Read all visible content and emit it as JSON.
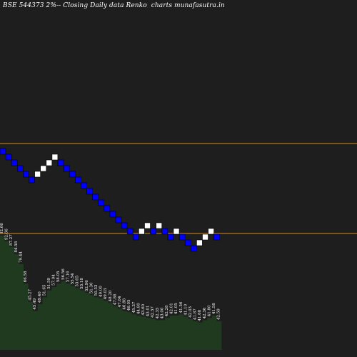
{
  "chart_data": {
    "type": "renko",
    "title": "BSE 544373 2%-- Closing Daily data Renko  charts munafasutra.in",
    "grid": false,
    "colors": {
      "background": "#1e1e1e",
      "up_brick": "#ffffff",
      "down_brick": "#0000ff",
      "reference_line": "#d98a1c",
      "volume_area": "#1f3a1f"
    },
    "reference_lines": [
      "upper",
      "lower"
    ],
    "bricks": [
      {
        "n": 0,
        "level": 0,
        "dir": "down"
      },
      {
        "n": 1,
        "level": 1,
        "dir": "down"
      },
      {
        "n": 2,
        "level": 2,
        "dir": "down"
      },
      {
        "n": 3,
        "level": 3,
        "dir": "down"
      },
      {
        "n": 4,
        "level": 4,
        "dir": "down"
      },
      {
        "n": 5,
        "level": 5,
        "dir": "down"
      },
      {
        "n": 6,
        "level": 4,
        "dir": "up"
      },
      {
        "n": 7,
        "level": 3,
        "dir": "up"
      },
      {
        "n": 8,
        "level": 2,
        "dir": "up"
      },
      {
        "n": 9,
        "level": 1,
        "dir": "up"
      },
      {
        "n": 10,
        "level": 2,
        "dir": "down"
      },
      {
        "n": 11,
        "level": 3,
        "dir": "down"
      },
      {
        "n": 12,
        "level": 4,
        "dir": "down"
      },
      {
        "n": 13,
        "level": 5,
        "dir": "down"
      },
      {
        "n": 14,
        "level": 6,
        "dir": "down"
      },
      {
        "n": 15,
        "level": 7,
        "dir": "down"
      },
      {
        "n": 16,
        "level": 8,
        "dir": "down"
      },
      {
        "n": 17,
        "level": 9,
        "dir": "down"
      },
      {
        "n": 18,
        "level": 10,
        "dir": "down"
      },
      {
        "n": 19,
        "level": 11,
        "dir": "down"
      },
      {
        "n": 20,
        "level": 12,
        "dir": "down"
      },
      {
        "n": 21,
        "level": 13,
        "dir": "down"
      },
      {
        "n": 22,
        "level": 14,
        "dir": "down"
      },
      {
        "n": 23,
        "level": 15,
        "dir": "down"
      },
      {
        "n": 24,
        "level": 14,
        "dir": "up"
      },
      {
        "n": 25,
        "level": 13,
        "dir": "up"
      },
      {
        "n": 26,
        "level": 14,
        "dir": "down"
      },
      {
        "n": 27,
        "level": 13,
        "dir": "up"
      },
      {
        "n": 28,
        "level": 14,
        "dir": "down"
      },
      {
        "n": 29,
        "level": 15,
        "dir": "down"
      },
      {
        "n": 30,
        "level": 14,
        "dir": "up"
      },
      {
        "n": 31,
        "level": 15,
        "dir": "down"
      },
      {
        "n": 32,
        "level": 16,
        "dir": "down"
      },
      {
        "n": 33,
        "level": 17,
        "dir": "down"
      },
      {
        "n": 34,
        "level": 16,
        "dir": "up"
      },
      {
        "n": 35,
        "level": 15,
        "dir": "up"
      },
      {
        "n": 36,
        "level": 14,
        "dir": "up"
      },
      {
        "n": 37,
        "level": 15,
        "dir": "down"
      }
    ],
    "volume": [
      100,
      95,
      90,
      84,
      75,
      58,
      42,
      34,
      40,
      46,
      52,
      55,
      58,
      60,
      58,
      56,
      54,
      52,
      50,
      48,
      46,
      45,
      43,
      41,
      38,
      36,
      34,
      33,
      31,
      30,
      29,
      28,
      27,
      26,
      26,
      28,
      30,
      30,
      31,
      29,
      27,
      25,
      24,
      26,
      28,
      30,
      25
    ],
    "volume_labels": [
      "92.66",
      "92.66",
      "87.27",
      "84.58",
      "79.44",
      "66.58",
      "45.27",
      "45.49",
      "49.40",
      "51.65",
      "51.59",
      "57.04",
      "58.05",
      "56.56",
      "57.16",
      "55.54",
      "53.65",
      "53.18",
      "52.96",
      "51.30",
      "50.33",
      "49.00",
      "49.03",
      "48.20",
      "47.86",
      "47.04",
      "46.88",
      "46.05",
      "45.37",
      "44.80",
      "43.60",
      "43.01",
      "42.57",
      "42.35",
      "43.00",
      "42.28",
      "42.01",
      "41.05",
      "41.56",
      "41.10",
      "42.03",
      "41.87",
      "41.68",
      "42.36",
      "41.80",
      "41.58",
      "42.59"
    ]
  }
}
